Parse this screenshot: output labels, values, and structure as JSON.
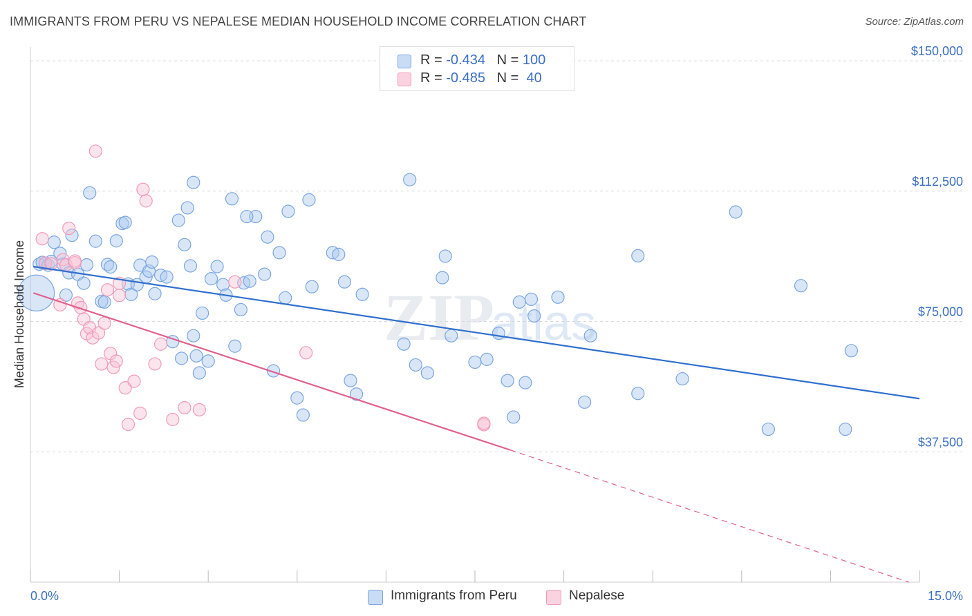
{
  "header": {
    "title": "IMMIGRANTS FROM PERU VS NEPALESE MEDIAN HOUSEHOLD INCOME CORRELATION CHART",
    "source": "Source: ZipAtlas.com"
  },
  "watermark": {
    "zip": "ZIP",
    "atlas": "atlas"
  },
  "legend_top": {
    "rows": [
      {
        "r_label": "R = ",
        "r_value": "-0.434",
        "n_label": "N = ",
        "n_value": "100",
        "color": "#7ba6e0"
      },
      {
        "r_label": "R = ",
        "r_value": "-0.485",
        "n_label": "N = ",
        "n_value": " 40",
        "color": "#f19ab8"
      }
    ]
  },
  "legend_bottom": {
    "items": [
      {
        "label": "Immigrants from Peru",
        "color": "#a9c7f0"
      },
      {
        "label": "Nepalese",
        "color": "#f9c3d5"
      }
    ]
  },
  "chart_data": {
    "type": "scatter",
    "title": "IMMIGRANTS FROM PERU VS NEPALESE MEDIAN HOUSEHOLD INCOME CORRELATION CHART",
    "ylabel": "Median Household Income",
    "xlabel": "",
    "xlim": [
      0,
      15
    ],
    "ylim": [
      0,
      152000
    ],
    "x_tick_labels": [
      "0.0%",
      "15.0%"
    ],
    "y_ticks": [
      {
        "value": 37500,
        "label": "$37,500"
      },
      {
        "value": 75000,
        "label": "$75,000"
      },
      {
        "value": 112500,
        "label": "$112,500"
      },
      {
        "value": 150000,
        "label": "$150,000"
      }
    ],
    "grid": "horizontal dashed",
    "legend_position": "top-center",
    "series": [
      {
        "name": "Immigrants from Peru",
        "color": "#7ba6e0",
        "fill": "#a9c7f0",
        "R": -0.434,
        "N": 100,
        "trend": {
          "x0": 0.05,
          "y0": 90800,
          "x1": 15.0,
          "y1": 52800,
          "color": "#2f6fce"
        },
        "points": [
          [
            0.1,
            83200
          ],
          [
            0.15,
            91500
          ],
          [
            0.2,
            92000
          ],
          [
            0.25,
            91700
          ],
          [
            0.3,
            91200
          ],
          [
            0.35,
            92300
          ],
          [
            0.4,
            97800
          ],
          [
            0.5,
            94600
          ],
          [
            0.55,
            91500
          ],
          [
            0.65,
            89000
          ],
          [
            0.7,
            99800
          ],
          [
            0.8,
            88600
          ],
          [
            0.9,
            86000
          ],
          [
            0.95,
            91300
          ],
          [
            1.0,
            112000
          ],
          [
            1.1,
            98100
          ],
          [
            1.2,
            80800
          ],
          [
            1.3,
            91400
          ],
          [
            1.35,
            90700
          ],
          [
            1.45,
            98200
          ],
          [
            1.55,
            103200
          ],
          [
            1.6,
            103500
          ],
          [
            1.65,
            85800
          ],
          [
            1.7,
            82800
          ],
          [
            1.8,
            85600
          ],
          [
            1.85,
            91200
          ],
          [
            1.95,
            87800
          ],
          [
            2.0,
            89500
          ],
          [
            2.1,
            83000
          ],
          [
            2.2,
            88300
          ],
          [
            2.3,
            87800
          ],
          [
            2.4,
            69200
          ],
          [
            2.5,
            104100
          ],
          [
            2.55,
            64400
          ],
          [
            2.6,
            97100
          ],
          [
            2.65,
            107700
          ],
          [
            2.75,
            70900
          ],
          [
            2.8,
            65100
          ],
          [
            2.75,
            115000
          ],
          [
            2.7,
            91000
          ],
          [
            2.85,
            60200
          ],
          [
            2.9,
            77400
          ],
          [
            3.0,
            63600
          ],
          [
            3.05,
            87300
          ],
          [
            3.15,
            90800
          ],
          [
            3.25,
            85600
          ],
          [
            3.3,
            82600
          ],
          [
            3.4,
            110300
          ],
          [
            3.45,
            67900
          ],
          [
            3.55,
            78400
          ],
          [
            3.6,
            86100
          ],
          [
            3.7,
            86600
          ],
          [
            3.8,
            105200
          ],
          [
            3.95,
            88600
          ],
          [
            4.0,
            99300
          ],
          [
            4.1,
            60800
          ],
          [
            4.2,
            94800
          ],
          [
            4.3,
            81800
          ],
          [
            4.35,
            106700
          ],
          [
            4.5,
            53000
          ],
          [
            4.6,
            48100
          ],
          [
            4.7,
            110000
          ],
          [
            4.75,
            85000
          ],
          [
            5.1,
            94800
          ],
          [
            5.2,
            94300
          ],
          [
            5.3,
            86400
          ],
          [
            5.4,
            58000
          ],
          [
            5.5,
            54100
          ],
          [
            5.6,
            82800
          ],
          [
            6.3,
            68500
          ],
          [
            6.4,
            115800
          ],
          [
            6.5,
            62500
          ],
          [
            6.7,
            60200
          ],
          [
            6.95,
            87600
          ],
          [
            7.0,
            93800
          ],
          [
            7.1,
            70900
          ],
          [
            7.5,
            63300
          ],
          [
            7.7,
            64100
          ],
          [
            7.9,
            71600
          ],
          [
            8.05,
            58000
          ],
          [
            8.15,
            47500
          ],
          [
            8.25,
            80600
          ],
          [
            8.35,
            57400
          ],
          [
            8.45,
            81400
          ],
          [
            8.5,
            76600
          ],
          [
            8.9,
            82000
          ],
          [
            9.35,
            51800
          ],
          [
            9.45,
            70900
          ],
          [
            10.25,
            93900
          ],
          [
            10.25,
            54300
          ],
          [
            11.0,
            58500
          ],
          [
            11.9,
            106500
          ],
          [
            12.45,
            44000
          ],
          [
            13.0,
            85300
          ],
          [
            13.75,
            44000
          ],
          [
            13.85,
            66600
          ],
          [
            3.65,
            105200
          ],
          [
            0.6,
            82600
          ],
          [
            1.25,
            80600
          ],
          [
            2.05,
            92100
          ]
        ]
      },
      {
        "name": "Nepalese",
        "color": "#f19ab8",
        "fill": "#f9c3d5",
        "R": -0.485,
        "N": 40,
        "trend": {
          "x0": 0.05,
          "y0": 83200,
          "x1": 8.1,
          "y1": 38000,
          "color": "#e0608c"
        },
        "trend_dashed": {
          "x0": 8.1,
          "y0": 38000,
          "x1": 15.0,
          "y1": -1000
        },
        "points": [
          [
            0.2,
            98800
          ],
          [
            0.25,
            91800
          ],
          [
            0.35,
            91600
          ],
          [
            0.5,
            79800
          ],
          [
            0.55,
            92800
          ],
          [
            0.6,
            91300
          ],
          [
            0.65,
            101800
          ],
          [
            0.75,
            91900
          ],
          [
            0.8,
            80300
          ],
          [
            0.85,
            79000
          ],
          [
            0.9,
            75700
          ],
          [
            0.95,
            71500
          ],
          [
            1.0,
            73200
          ],
          [
            1.05,
            70300
          ],
          [
            1.1,
            124000
          ],
          [
            1.15,
            71700
          ],
          [
            1.2,
            62800
          ],
          [
            1.25,
            74500
          ],
          [
            1.3,
            84100
          ],
          [
            1.35,
            65800
          ],
          [
            1.4,
            61800
          ],
          [
            1.45,
            63600
          ],
          [
            1.5,
            82500
          ],
          [
            1.6,
            55900
          ],
          [
            1.65,
            45400
          ],
          [
            1.75,
            57800
          ],
          [
            1.85,
            48600
          ],
          [
            1.9,
            113000
          ],
          [
            1.95,
            109700
          ],
          [
            2.1,
            62800
          ],
          [
            2.2,
            68500
          ],
          [
            2.4,
            46800
          ],
          [
            2.6,
            50200
          ],
          [
            2.85,
            49600
          ],
          [
            3.45,
            86400
          ],
          [
            4.65,
            66000
          ],
          [
            7.65,
            45300
          ],
          [
            7.65,
            45700
          ],
          [
            1.5,
            86000
          ],
          [
            0.75,
            92400
          ]
        ]
      }
    ]
  }
}
